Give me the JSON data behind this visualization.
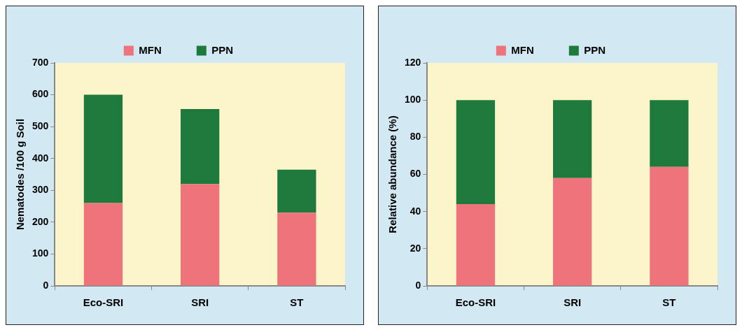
{
  "chart_data": [
    {
      "type": "bar",
      "stacked": true,
      "ylabel": "Nematodes /100 g Soil",
      "categories": [
        "Eco-SRI",
        "SRI",
        "ST"
      ],
      "series": [
        {
          "name": "MFN",
          "color": "#ee737a",
          "values": [
            260,
            320,
            230
          ]
        },
        {
          "name": "PPN",
          "color": "#1d7a3c",
          "values": [
            340,
            235,
            135
          ]
        }
      ],
      "ylim": [
        0,
        700
      ],
      "yticks": [
        0,
        100,
        200,
        300,
        400,
        500,
        600,
        700
      ],
      "grid": false,
      "legend": "top"
    },
    {
      "type": "bar",
      "stacked": true,
      "ylabel": "Relative abundance (%)",
      "categories": [
        "Eco-SRI",
        "SRI",
        "ST"
      ],
      "series": [
        {
          "name": "MFN",
          "color": "#ee737a",
          "values": [
            44,
            58,
            64
          ]
        },
        {
          "name": "PPN",
          "color": "#1d7a3c",
          "values": [
            56,
            42,
            36
          ]
        }
      ],
      "ylim": [
        0,
        120
      ],
      "yticks": [
        0,
        20,
        40,
        60,
        80,
        100,
        120
      ],
      "grid": false,
      "legend": "top"
    }
  ]
}
